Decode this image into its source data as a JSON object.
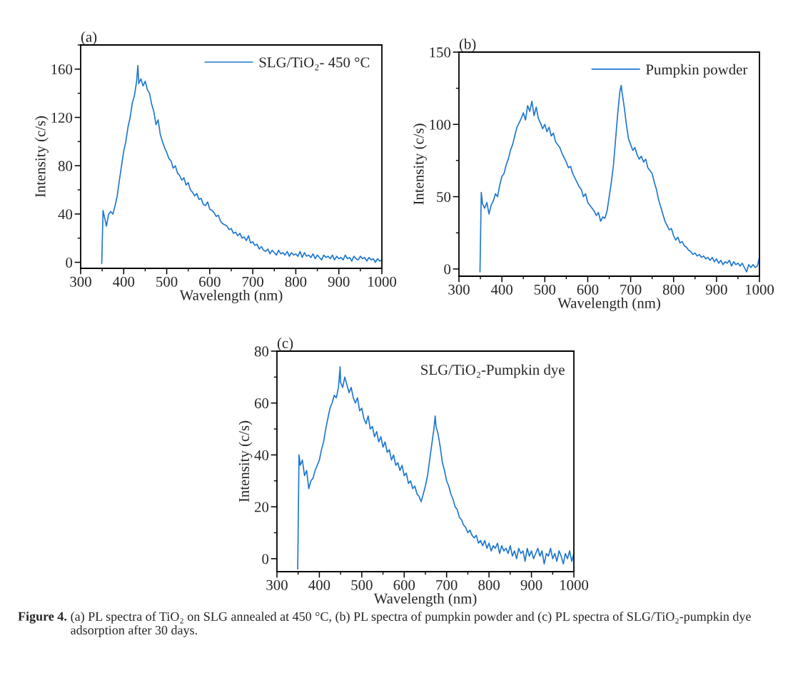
{
  "chart_data": [
    {
      "type": "line",
      "title": "(a)",
      "xlabel": "Wavelength (nm)",
      "ylabel": "Intensity (c/s)",
      "legend": "top right",
      "x": [
        349,
        352,
        355,
        360,
        365,
        370,
        375,
        380,
        385,
        390,
        395,
        400,
        405,
        410,
        415,
        420,
        425,
        430,
        433,
        435,
        440,
        445,
        450,
        455,
        460,
        465,
        470,
        475,
        480,
        485,
        490,
        495,
        500,
        505,
        510,
        515,
        520,
        525,
        530,
        535,
        540,
        545,
        550,
        555,
        560,
        565,
        570,
        575,
        580,
        585,
        590,
        595,
        600,
        605,
        610,
        615,
        620,
        625,
        630,
        635,
        640,
        645,
        650,
        655,
        660,
        665,
        670,
        675,
        680,
        685,
        690,
        695,
        700,
        705,
        710,
        715,
        720,
        725,
        730,
        735,
        740,
        745,
        750,
        755,
        760,
        765,
        770,
        775,
        780,
        785,
        790,
        795,
        800,
        805,
        810,
        815,
        820,
        825,
        830,
        835,
        840,
        845,
        850,
        855,
        860,
        865,
        870,
        875,
        880,
        885,
        890,
        895,
        900,
        905,
        910,
        915,
        920,
        925,
        930,
        935,
        940,
        945,
        950,
        955,
        960,
        965,
        970,
        975,
        980,
        985,
        990,
        995,
        1000
      ],
      "series": [
        {
          "name": "SLG/TiO₂- 450 °C",
          "color": "#1f77d0",
          "values": [
            -1,
            43,
            38,
            30,
            40,
            42,
            40,
            47,
            55,
            68,
            80,
            92,
            100,
            112,
            120,
            132,
            138,
            150,
            163,
            148,
            152,
            146,
            150,
            143,
            140,
            131,
            125,
            114,
            118,
            106,
            100,
            95,
            91,
            86,
            84,
            78,
            80,
            74,
            72,
            68,
            70,
            64,
            66,
            60,
            58,
            55,
            57,
            52,
            53,
            48,
            47,
            50,
            44,
            43,
            41,
            38,
            39,
            34,
            32,
            31,
            30,
            27,
            28,
            24,
            25,
            22,
            24,
            20,
            21,
            18,
            22,
            16,
            17,
            14,
            15,
            11,
            13,
            10,
            9,
            11,
            7,
            10,
            8,
            6,
            10,
            7,
            8,
            6,
            9,
            5,
            8,
            6,
            7,
            5,
            9,
            4,
            8,
            5,
            6,
            4,
            7,
            3,
            6,
            4,
            2,
            6,
            4,
            5,
            3,
            6,
            2,
            5,
            3,
            4,
            2,
            6,
            3,
            4,
            1,
            5,
            3,
            2,
            5,
            3,
            4,
            1,
            4,
            2,
            3,
            0,
            3,
            1,
            2
          ]
        }
      ],
      "xlim": [
        300,
        1000
      ],
      "xticks": [
        300,
        400,
        500,
        600,
        700,
        800,
        900,
        1000
      ],
      "ylim": [
        -5,
        180
      ],
      "yticks": [
        0,
        40,
        80,
        120,
        160
      ]
    },
    {
      "type": "line",
      "title": "(b)",
      "xlabel": "Wavelength (nm)",
      "ylabel": "Intensity (c/s)",
      "legend": "top right",
      "x": [
        349,
        352,
        355,
        360,
        365,
        370,
        375,
        380,
        385,
        390,
        395,
        400,
        405,
        410,
        415,
        420,
        425,
        430,
        435,
        440,
        445,
        450,
        455,
        460,
        465,
        470,
        475,
        480,
        485,
        490,
        495,
        500,
        505,
        510,
        515,
        520,
        525,
        530,
        535,
        540,
        545,
        550,
        555,
        560,
        565,
        570,
        575,
        580,
        585,
        590,
        595,
        600,
        605,
        610,
        615,
        620,
        625,
        630,
        635,
        640,
        645,
        650,
        655,
        660,
        665,
        670,
        675,
        678,
        680,
        685,
        690,
        695,
        700,
        705,
        710,
        715,
        720,
        725,
        730,
        735,
        740,
        745,
        750,
        755,
        760,
        765,
        770,
        775,
        780,
        785,
        790,
        795,
        800,
        805,
        810,
        815,
        820,
        825,
        830,
        835,
        840,
        845,
        850,
        855,
        860,
        865,
        870,
        875,
        880,
        885,
        890,
        895,
        900,
        905,
        910,
        915,
        920,
        925,
        930,
        935,
        940,
        945,
        950,
        955,
        960,
        965,
        970,
        975,
        980,
        985,
        990,
        995,
        1000
      ],
      "series": [
        {
          "name": "Pumpkin powder",
          "color": "#1f77d0",
          "values": [
            -2,
            53,
            45,
            42,
            46,
            38,
            44,
            47,
            52,
            50,
            58,
            64,
            66,
            72,
            76,
            82,
            86,
            92,
            98,
            101,
            104,
            108,
            103,
            113,
            109,
            116,
            106,
            112,
            104,
            101,
            97,
            100,
            95,
            98,
            92,
            94,
            88,
            86,
            84,
            80,
            77,
            74,
            70,
            71,
            66,
            63,
            60,
            57,
            55,
            50,
            52,
            46,
            44,
            42,
            40,
            37,
            39,
            33,
            36,
            35,
            40,
            50,
            60,
            72,
            90,
            108,
            123,
            127,
            122,
            112,
            100,
            90,
            86,
            82,
            84,
            79,
            76,
            78,
            74,
            76,
            70,
            68,
            66,
            60,
            55,
            48,
            43,
            38,
            33,
            30,
            27,
            28,
            23,
            20,
            22,
            18,
            19,
            16,
            15,
            13,
            12,
            10,
            11,
            9,
            10,
            8,
            9,
            7,
            8,
            6,
            8,
            5,
            7,
            4,
            6,
            3,
            5,
            4,
            6,
            2,
            5,
            3,
            4,
            2,
            4,
            1,
            -2,
            3,
            1,
            3,
            1,
            2,
            8
          ]
        }
      ],
      "xlim": [
        300,
        1000
      ],
      "xticks": [
        300,
        400,
        500,
        600,
        700,
        800,
        900,
        1000
      ],
      "ylim": [
        -5,
        150
      ],
      "yticks": [
        0,
        50,
        100,
        150
      ]
    },
    {
      "type": "line",
      "title": "(c)",
      "xlabel": "Wavelength (nm)",
      "ylabel": "Intensity (c/s)",
      "x": [
        349,
        352,
        355,
        360,
        365,
        370,
        375,
        380,
        385,
        390,
        395,
        400,
        405,
        410,
        415,
        420,
        425,
        430,
        435,
        440,
        445,
        449,
        450,
        455,
        460,
        465,
        470,
        475,
        480,
        485,
        490,
        495,
        500,
        505,
        510,
        515,
        520,
        525,
        530,
        535,
        540,
        545,
        550,
        555,
        560,
        565,
        570,
        575,
        580,
        585,
        590,
        595,
        600,
        605,
        610,
        615,
        620,
        625,
        630,
        635,
        640,
        645,
        650,
        655,
        660,
        665,
        670,
        673,
        675,
        680,
        685,
        690,
        695,
        700,
        705,
        710,
        715,
        720,
        725,
        730,
        735,
        740,
        745,
        750,
        755,
        760,
        765,
        770,
        775,
        780,
        785,
        790,
        795,
        800,
        805,
        810,
        815,
        820,
        825,
        830,
        835,
        840,
        845,
        850,
        855,
        860,
        865,
        870,
        875,
        880,
        885,
        890,
        895,
        900,
        905,
        910,
        915,
        920,
        925,
        930,
        935,
        940,
        945,
        950,
        955,
        960,
        965,
        970,
        975,
        980,
        985,
        990,
        995,
        1000
      ],
      "series": [
        {
          "color": "#1f77d0",
          "values": [
            -4,
            40,
            36,
            38,
            32,
            34,
            27,
            30,
            31,
            34,
            36,
            38,
            42,
            45,
            50,
            54,
            58,
            60,
            63,
            62,
            66,
            74,
            68,
            66,
            70,
            67,
            64,
            66,
            62,
            60,
            62,
            57,
            58,
            54,
            52,
            55,
            50,
            51,
            47,
            49,
            45,
            47,
            43,
            45,
            41,
            42,
            38,
            40,
            36,
            37,
            34,
            36,
            32,
            33,
            29,
            30,
            27,
            28,
            25,
            24,
            22,
            25,
            28,
            32,
            38,
            44,
            50,
            55,
            51,
            48,
            43,
            37,
            34,
            30,
            28,
            25,
            23,
            20,
            19,
            16,
            15,
            13,
            12,
            10,
            11,
            9,
            8,
            9,
            6,
            7,
            5,
            7,
            4,
            6,
            3,
            5,
            4,
            6,
            2,
            5,
            3,
            4,
            2,
            5,
            1,
            3,
            0,
            4,
            2,
            3,
            -1,
            4,
            1,
            3,
            0,
            2,
            4,
            1,
            3,
            -2,
            2,
            1,
            4,
            0,
            2,
            -1,
            3,
            1,
            -2,
            2,
            0,
            3,
            -1,
            2
          ]
        }
      ],
      "xlim": [
        300,
        1000
      ],
      "xticks": [
        300,
        400,
        500,
        600,
        700,
        800,
        900,
        1000
      ],
      "ylim": [
        -5,
        80
      ],
      "yticks": [
        0,
        20,
        40,
        60,
        80
      ],
      "annotations": [
        "SLG/TiO₂-Pumpkin dye",
        "Figure 4.",
        "(a) PL spectra of TiO₂ on SLG annealed at 450 °C, (b) PL spectra of pumpkin powder and (c) PL spectra of SLG/TiO₂-pumpkin dye adsorption after 30 days."
      ]
    }
  ]
}
